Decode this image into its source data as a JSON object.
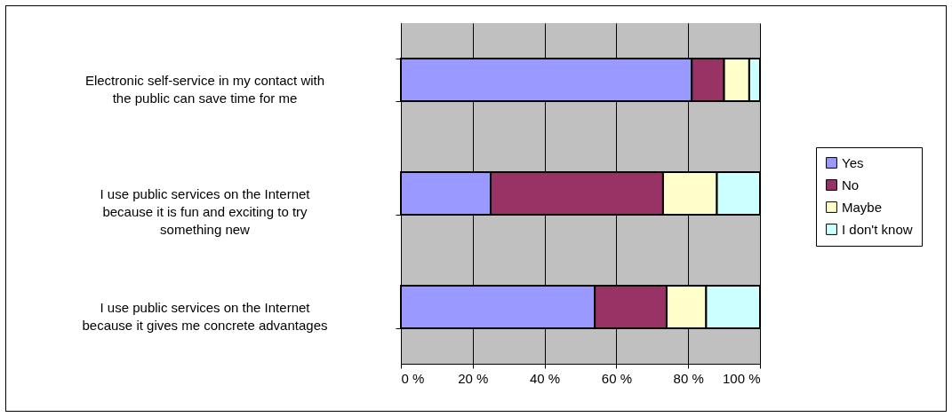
{
  "chart_data": {
    "type": "bar",
    "orientation": "horizontal",
    "stacked": true,
    "categories": [
      "Electronic self-service in my contact with the public can save time for me",
      "I use public services on the Internet because it is fun and exciting to try something new",
      "I use public services on the Internet because it gives me concrete advantages"
    ],
    "series": [
      {
        "name": "Yes",
        "color": "#9999ff",
        "values": [
          81,
          25,
          54
        ]
      },
      {
        "name": "No",
        "color": "#993366",
        "values": [
          9,
          48,
          20
        ]
      },
      {
        "name": "Maybe",
        "color": "#ffffcc",
        "values": [
          7,
          15,
          11
        ]
      },
      {
        "name": "I don't know",
        "color": "#ccffff",
        "values": [
          3,
          12,
          15
        ]
      }
    ],
    "xlim": [
      0,
      100
    ],
    "xticks": [
      {
        "value": 0,
        "label": "0 %"
      },
      {
        "value": 20,
        "label": "20 %"
      },
      {
        "value": 40,
        "label": "40 %"
      },
      {
        "value": 60,
        "label": "60 %"
      },
      {
        "value": 80,
        "label": "80 %"
      },
      {
        "value": 100,
        "label": "100 %"
      }
    ],
    "grid": "x",
    "legend": "right"
  }
}
